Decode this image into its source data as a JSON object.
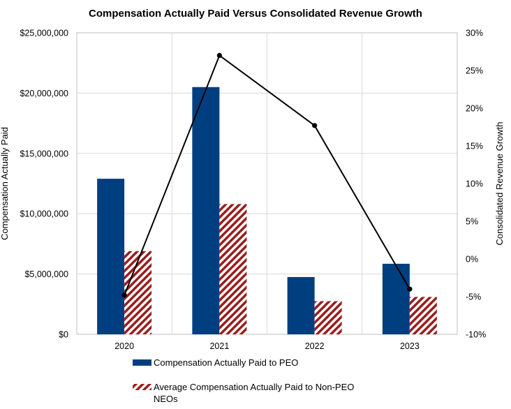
{
  "chart_data": {
    "type": "bar",
    "title": "Compensation Actually Paid Versus Consolidated Revenue Growth",
    "categories": [
      "2020",
      "2021",
      "2022",
      "2023"
    ],
    "ylabel_left": "Compensation Actually Paid",
    "ylabel_right": "Consolidated Revenue Growth",
    "ylim_left": [
      0,
      25000000
    ],
    "ylim_right": [
      -10,
      30
    ],
    "yticks_left": [
      "$0",
      "$5,000,000",
      "$10,000,000",
      "$15,000,000",
      "$20,000,000",
      "$25,000,000"
    ],
    "yticks_right": [
      "-10%",
      "-5%",
      "0%",
      "5%",
      "10%",
      "15%",
      "20%",
      "25%",
      "30%"
    ],
    "grid": true,
    "legend_position": "bottom",
    "series": [
      {
        "name": "Compensation Actually Paid to PEO",
        "kind": "bar",
        "axis": "left",
        "color": "#003f7f",
        "values": [
          12900000,
          20500000,
          4750000,
          5850000
        ]
      },
      {
        "name": "Average Compensation Actually Paid to Non-PEO NEOs",
        "kind": "bar-hatched",
        "axis": "left",
        "color": "#9b1c1c",
        "values": [
          6900000,
          10800000,
          2750000,
          3100000
        ]
      },
      {
        "name": "Consolidated Revenue Growth",
        "kind": "line",
        "axis": "right",
        "color": "#000000",
        "values": [
          -4.8,
          27.0,
          17.7,
          -4.0
        ]
      }
    ],
    "legend": {
      "peo_label": "Compensation Actually Paid to PEO",
      "neo_label_line1": "Average Compensation Actually Paid to Non-PEO",
      "neo_label_line2": "NEOs"
    }
  }
}
